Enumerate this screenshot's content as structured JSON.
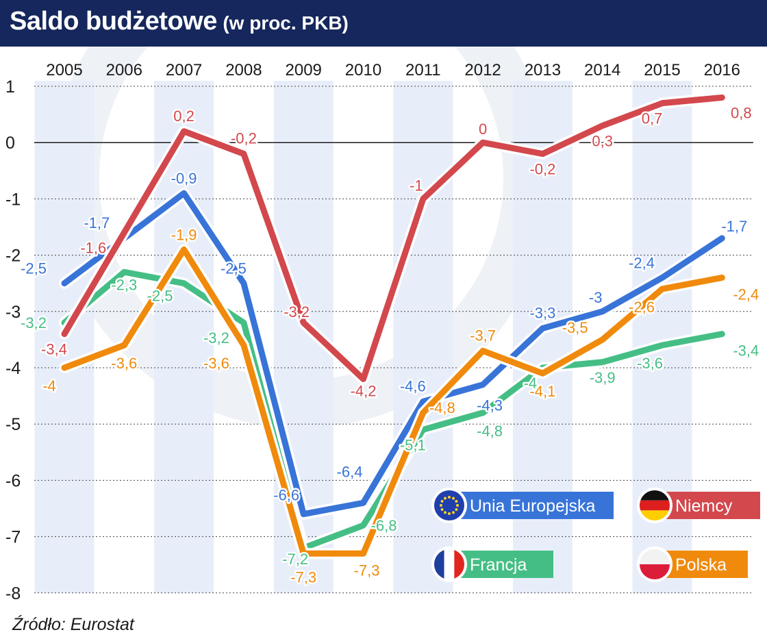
{
  "header": {
    "title": "Saldo budżetowe",
    "subtitle": "(w proc. PKB)"
  },
  "source": "Źródło: Eurostat",
  "chart_data": {
    "type": "line",
    "title": "Saldo budżetowe",
    "subtitle": "(w proc. PKB)",
    "x": [
      "2005",
      "2006",
      "2007",
      "2008",
      "2009",
      "2010",
      "2011",
      "2012",
      "2013",
      "2014",
      "2015",
      "2016"
    ],
    "ylim": [
      -8,
      1
    ],
    "yticks": [
      "1",
      "0",
      "-1",
      "-2",
      "-3",
      "-4",
      "-5",
      "-6",
      "-7",
      "-8"
    ],
    "grid": true,
    "legend_position": "bottom-right",
    "series": [
      {
        "name": "Niemcy",
        "color": "#d2484d",
        "icon": "flag-de-icon",
        "values": [
          -3.4,
          -1.6,
          0.2,
          -0.2,
          -3.2,
          -4.2,
          -1,
          0,
          -0.2,
          0.3,
          0.7,
          0.8
        ],
        "labels": [
          "-3,4",
          "-1,6",
          "0,2",
          "-0,2",
          "-3,2",
          "-4,2",
          "-1",
          "0",
          "-0,2",
          "0,3",
          "0,7",
          "0,8"
        ]
      },
      {
        "name": "Unia Europejska",
        "color": "#3874d8",
        "icon": "flag-eu-icon",
        "values": [
          -2.5,
          -1.7,
          -0.9,
          -2.5,
          -6.6,
          -6.4,
          -4.6,
          -4.3,
          -3.3,
          -3,
          -2.4,
          -1.7
        ],
        "labels": [
          "-2,5",
          "-1,7",
          "-0,9",
          "-2,5",
          "-6,6",
          "-6,4",
          "-4,6",
          "-4,3",
          "-3,3",
          "-3",
          "-2,4",
          "-1,7"
        ]
      },
      {
        "name": "Francja",
        "color": "#45be86",
        "icon": "flag-fr-icon",
        "values": [
          -3.2,
          -2.3,
          -2.5,
          -3.2,
          -7.2,
          -6.8,
          -5.1,
          -4.8,
          -4,
          -3.9,
          -3.6,
          -3.4
        ],
        "labels": [
          "-3,2",
          "-2,3",
          "-2,5",
          "-3,2",
          "-7,2",
          "-6,8",
          "-5,1",
          "-4,8",
          "-4",
          "-3,9",
          "-3,6",
          "-3,4"
        ]
      },
      {
        "name": "Polska",
        "color": "#f08a0c",
        "icon": "flag-pl-icon",
        "values": [
          -4,
          -3.6,
          -1.9,
          -3.6,
          -7.3,
          -7.3,
          -4.8,
          -3.7,
          -4.1,
          -3.5,
          -2.6,
          -2.4
        ],
        "labels": [
          "-4",
          "-3,6",
          "-1,9",
          "-3,6",
          "-7,3",
          "-7,3",
          "-4,8",
          "-3,7",
          "-4,1",
          "-3,5",
          "-2,6",
          "-2,4"
        ]
      }
    ]
  }
}
